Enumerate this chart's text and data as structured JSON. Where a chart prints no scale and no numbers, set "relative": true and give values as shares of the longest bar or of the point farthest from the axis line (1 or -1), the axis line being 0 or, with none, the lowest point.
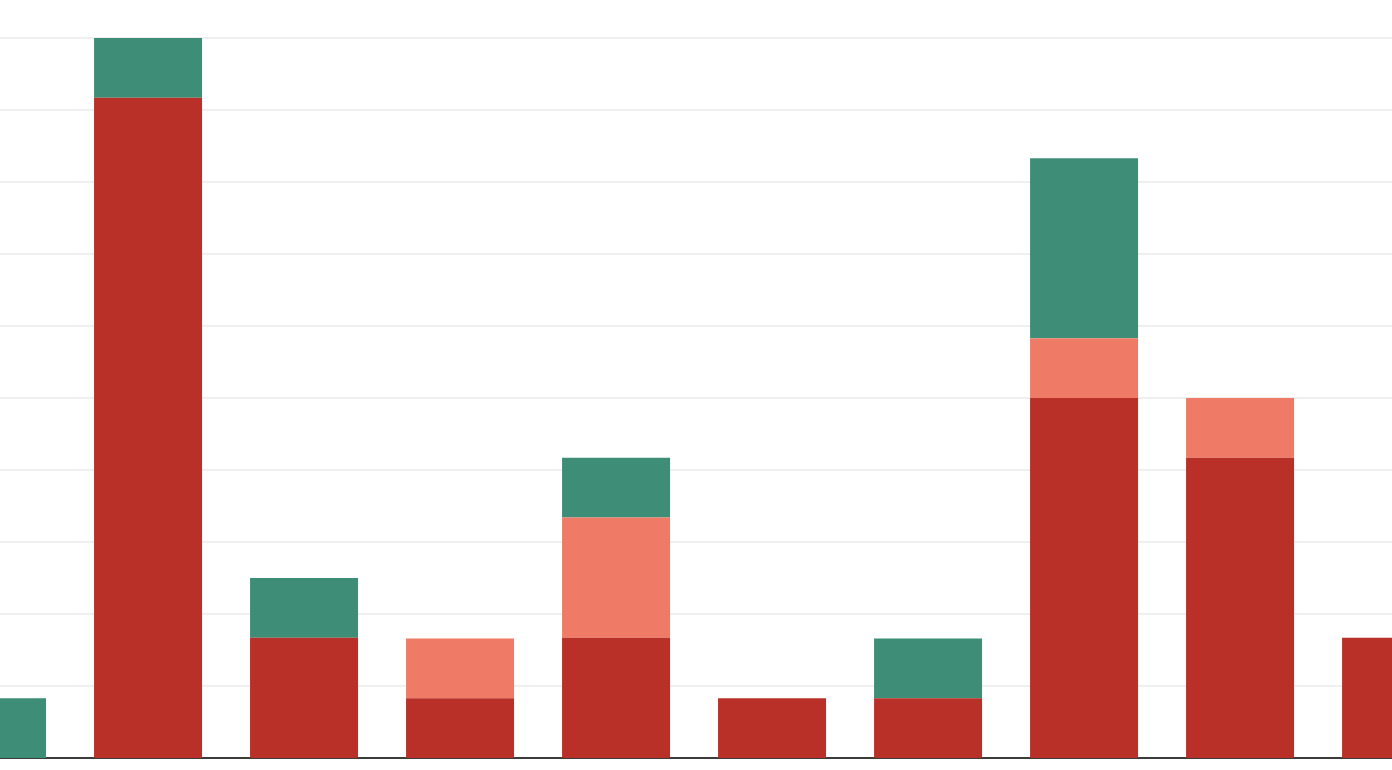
{
  "chart_data": {
    "type": "bar",
    "relative": true,
    "stacked": true,
    "grid": "y",
    "categories": [
      null,
      null,
      null,
      null,
      null,
      null,
      null,
      null,
      null,
      null
    ],
    "series": [
      {
        "color": "#b83028",
        "values": [
          0,
          0.917,
          0.167,
          0.083,
          0.167,
          0.083,
          0.083,
          0.5,
          0.417,
          0.167
        ]
      },
      {
        "color": "#ef7b67",
        "values": [
          0,
          0,
          0,
          0.083,
          0.167,
          0,
          0,
          0.083,
          0.083,
          0
        ]
      },
      {
        "color": "#3e8e77",
        "values": [
          0.083,
          0.083,
          0.083,
          0,
          0.083,
          0,
          0.083,
          0.25,
          0,
          0
        ]
      }
    ]
  }
}
